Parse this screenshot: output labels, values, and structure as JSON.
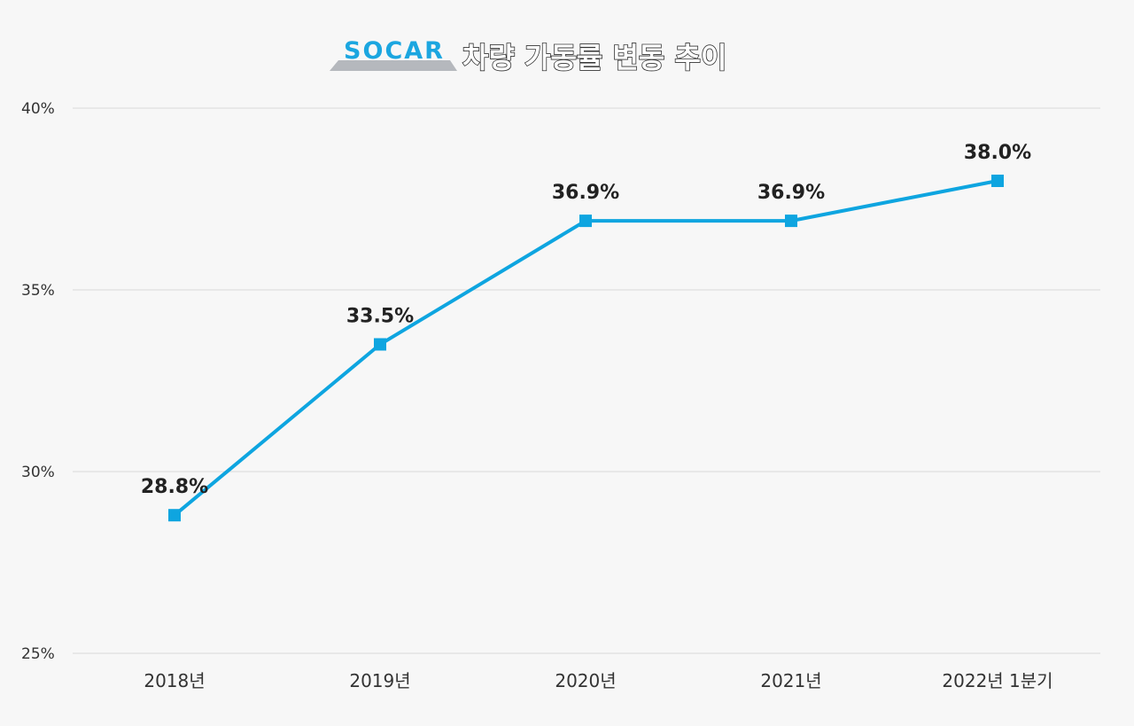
{
  "brand": {
    "logo_text": "SOCAR",
    "logo_color": "#1ba6e0",
    "logo_underline_color": "#b5b8bd"
  },
  "colors": {
    "background": "#f7f7f7",
    "series": "#0ea5e0",
    "grid": "#dadada",
    "text": "#333333"
  },
  "chart_data": {
    "type": "line",
    "title": "차량 가동률 변동 추이",
    "categories": [
      "2018년",
      "2019년",
      "2020년",
      "2021년",
      "2022년 1분기"
    ],
    "series": [
      {
        "values": [
          28.8,
          33.5,
          36.9,
          36.9,
          38.0
        ],
        "labels": [
          "28.8%",
          "33.5%",
          "36.9%",
          "36.9%",
          "38.0%"
        ],
        "marker": "square"
      }
    ],
    "ylim": [
      25,
      40
    ],
    "yticks": [
      25,
      30,
      35,
      40
    ],
    "ytick_labels": [
      "25%",
      "30%",
      "35%",
      "40%"
    ],
    "xlabel": "",
    "ylabel": "",
    "grid": true,
    "legend": "none"
  }
}
